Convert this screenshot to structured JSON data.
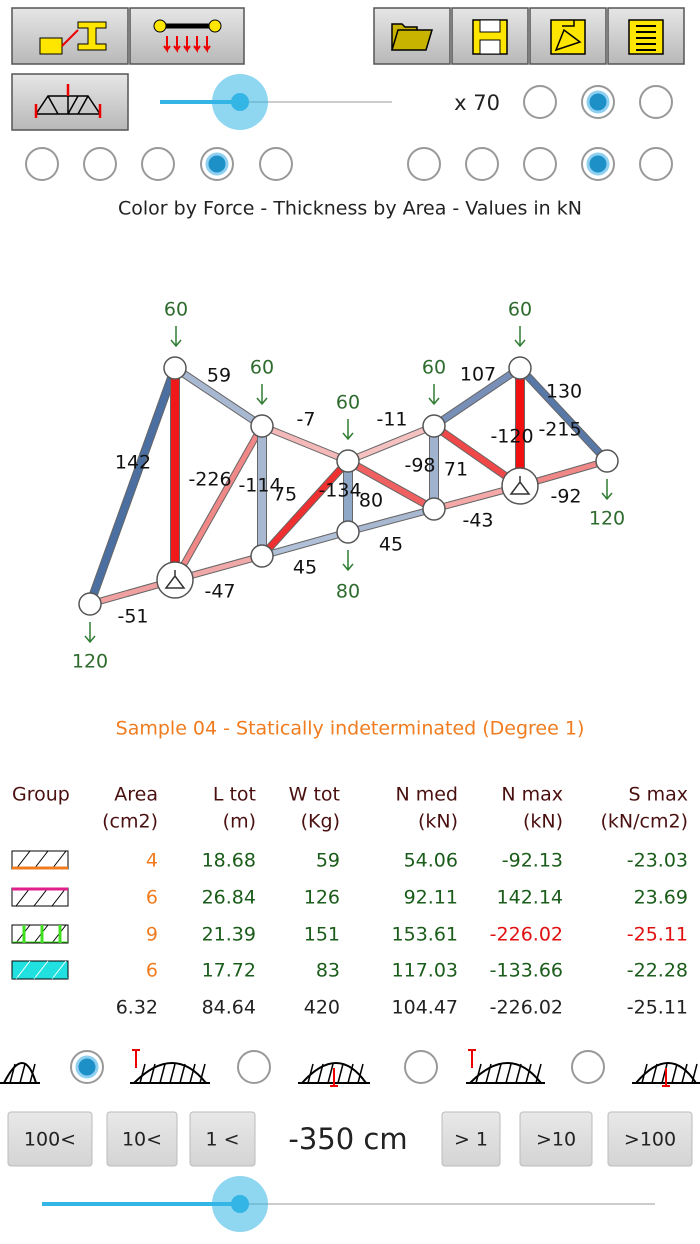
{
  "toolbar": {
    "scale_label": "x 70"
  },
  "legend_text": "Color by Force - Thickness by Area - Values in kN",
  "truss": {
    "member_forces": [
      142,
      -51,
      -226,
      59,
      -114,
      75,
      -47,
      -7,
      -134,
      45,
      80,
      -11,
      -98,
      45,
      71,
      107,
      -120,
      130,
      -215,
      -43,
      -92
    ],
    "loads": [
      60,
      60,
      60,
      60,
      60,
      120,
      80,
      120
    ]
  },
  "caption": "Sample 04 - Statically indeterminated (Degree 1)",
  "table": {
    "headers": [
      [
        "Group"
      ],
      [
        "Area",
        "(cm2)"
      ],
      [
        "L tot",
        "(m)"
      ],
      [
        "W tot",
        "(Kg)"
      ],
      [
        "N med",
        "(kN)"
      ],
      [
        "N max",
        "(kN)"
      ],
      [
        "S max",
        "(kN/cm2)"
      ]
    ],
    "rows": [
      [
        4,
        18.68,
        59,
        54.06,
        -92.13,
        -23.03
      ],
      [
        6,
        26.84,
        126,
        92.11,
        142.14,
        23.69
      ],
      [
        9,
        21.39,
        151,
        153.61,
        -226.02,
        -25.11
      ],
      [
        6,
        17.72,
        83,
        117.03,
        -133.66,
        -22.28
      ]
    ],
    "total": [
      6.32,
      84.64,
      420,
      104.47,
      -226.02,
      -25.11
    ]
  },
  "stepper": {
    "buttons": [
      "100<",
      "10<",
      "1 <",
      "> 1",
      ">10",
      ">100"
    ],
    "value": "-350 cm"
  }
}
